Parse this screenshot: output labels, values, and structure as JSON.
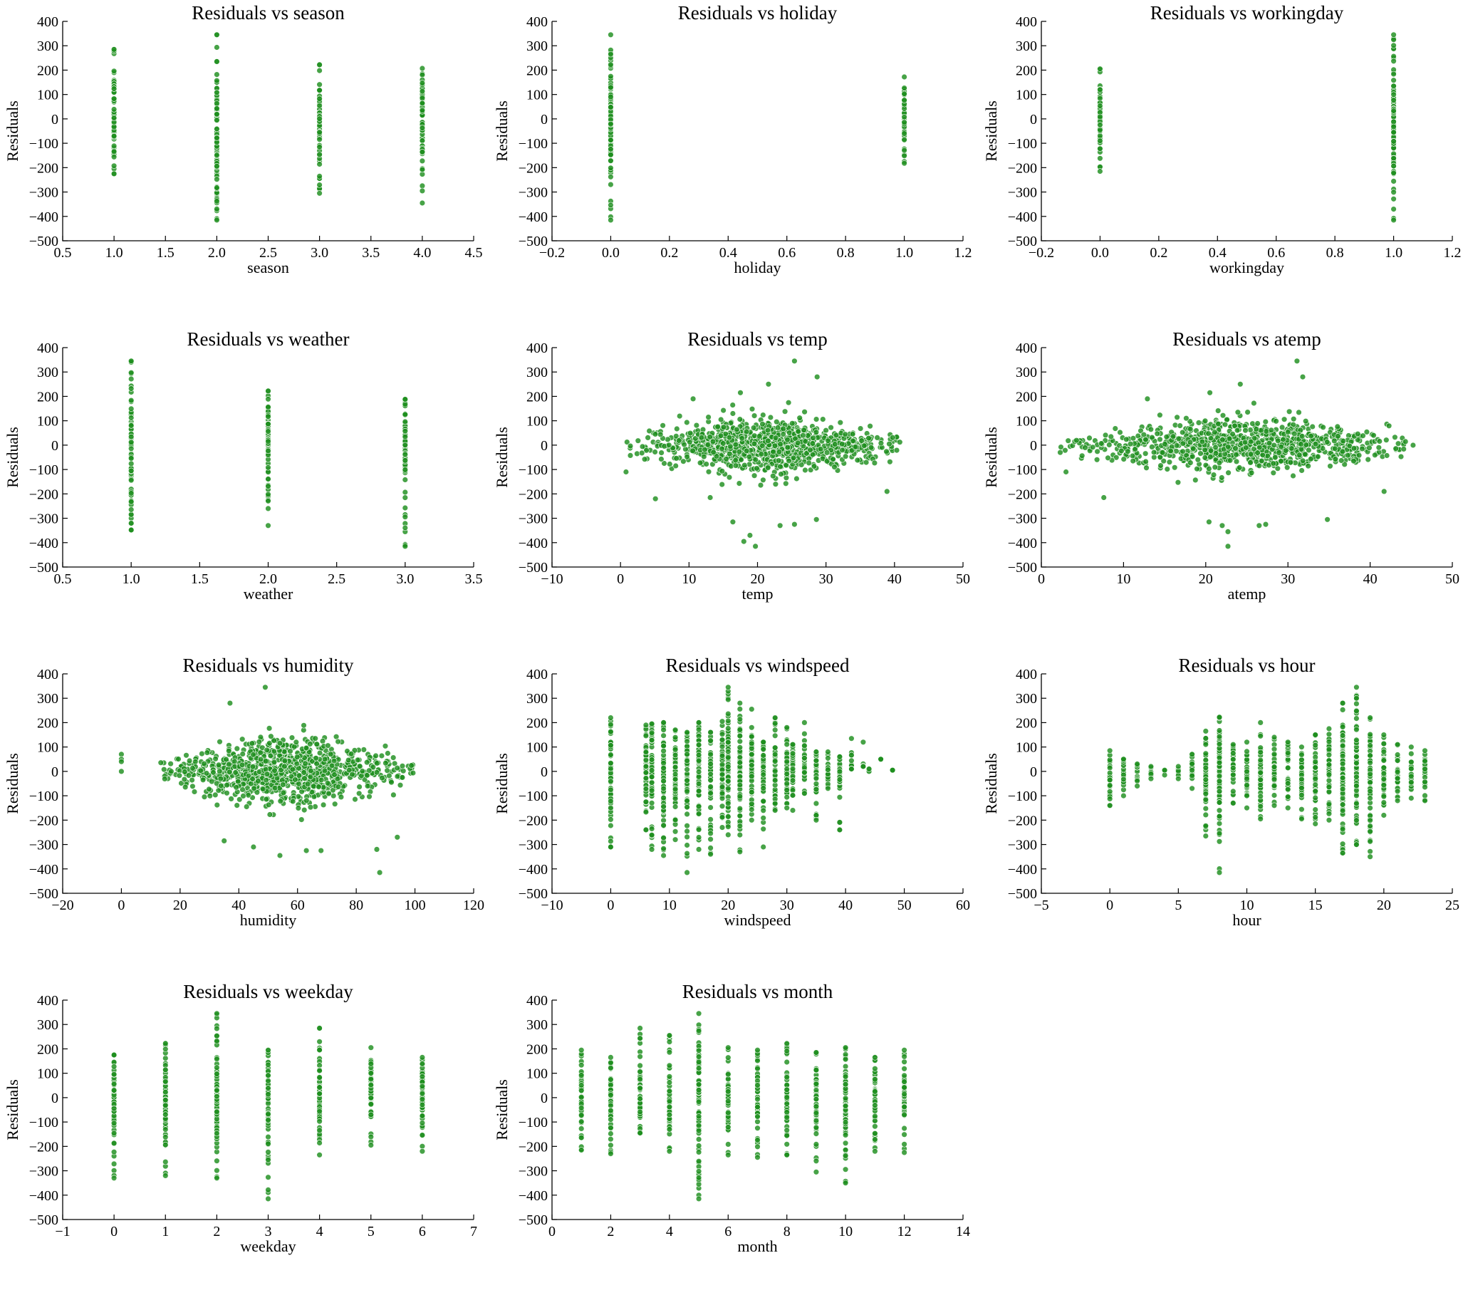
{
  "chart_data": [
    {
      "type": "scatter",
      "title": "Residuals vs season",
      "xlabel": "season",
      "ylabel": "Residuals",
      "xlim": [
        0.5,
        4.5
      ],
      "ylim": [
        -500,
        400
      ],
      "xticks": [
        "0.5",
        "1.0",
        "1.5",
        "2.0",
        "2.5",
        "3.0",
        "3.5",
        "4.0",
        "4.5"
      ],
      "yticks": [
        "400",
        "300",
        "200",
        "100",
        "0",
        "−100",
        "−200",
        "−300",
        "−400",
        "−500"
      ],
      "color": "#1f8f1f",
      "grid": false,
      "kind": "discrete",
      "groups": [
        {
          "x": 1,
          "min": -225,
          "max": 285
        },
        {
          "x": 2,
          "min": -415,
          "max": 345
        },
        {
          "x": 3,
          "min": -305,
          "max": 222
        },
        {
          "x": 4,
          "min": -345,
          "max": 207
        }
      ]
    },
    {
      "type": "scatter",
      "title": "Residuals vs holiday",
      "xlabel": "holiday",
      "ylabel": "Residuals",
      "xlim": [
        -0.2,
        1.2
      ],
      "ylim": [
        -500,
        400
      ],
      "xticks": [
        "−0.2",
        "0.0",
        "0.2",
        "0.4",
        "0.6",
        "0.8",
        "1.0",
        "1.2"
      ],
      "yticks": [
        "400",
        "300",
        "200",
        "100",
        "0",
        "−100",
        "−200",
        "−300",
        "−400",
        "−500"
      ],
      "color": "#1f8f1f",
      "grid": false,
      "kind": "discrete",
      "groups": [
        {
          "x": 0,
          "min": -415,
          "max": 345
        },
        {
          "x": 1,
          "min": -182,
          "max": 172
        }
      ]
    },
    {
      "type": "scatter",
      "title": "Residuals vs workingday",
      "xlabel": "workingday",
      "ylabel": "Residuals",
      "xlim": [
        -0.2,
        1.2
      ],
      "ylim": [
        -500,
        400
      ],
      "xticks": [
        "−0.2",
        "0.0",
        "0.2",
        "0.4",
        "0.6",
        "0.8",
        "1.0",
        "1.2"
      ],
      "yticks": [
        "400",
        "300",
        "200",
        "100",
        "0",
        "−100",
        "−200",
        "−300",
        "−400",
        "−500"
      ],
      "color": "#1f8f1f",
      "grid": false,
      "kind": "discrete",
      "groups": [
        {
          "x": 0,
          "min": -215,
          "max": 205
        },
        {
          "x": 1,
          "min": -415,
          "max": 345
        }
      ]
    },
    {
      "type": "scatter",
      "title": "Residuals vs weather",
      "xlabel": "weather",
      "ylabel": "Residuals",
      "xlim": [
        0.5,
        3.5
      ],
      "ylim": [
        -500,
        400
      ],
      "xticks": [
        "0.5",
        "1.0",
        "1.5",
        "2.0",
        "2.5",
        "3.0",
        "3.5"
      ],
      "yticks": [
        "400",
        "300",
        "200",
        "100",
        "0",
        "−100",
        "−200",
        "−300",
        "−400",
        "−500"
      ],
      "color": "#1f8f1f",
      "grid": false,
      "kind": "discrete",
      "groups": [
        {
          "x": 1,
          "min": -348,
          "max": 345
        },
        {
          "x": 2,
          "min": -330,
          "max": 222
        },
        {
          "x": 3,
          "min": -415,
          "max": 188
        }
      ]
    },
    {
      "type": "scatter",
      "title": "Residuals vs temp",
      "xlabel": "temp",
      "ylabel": "Residuals",
      "xlim": [
        -10,
        50
      ],
      "ylim": [
        -500,
        400
      ],
      "xticks": [
        "−10",
        "0",
        "10",
        "20",
        "30",
        "40",
        "50"
      ],
      "yticks": [
        "400",
        "300",
        "200",
        "100",
        "0",
        "−100",
        "−200",
        "−300",
        "−400",
        "−500"
      ],
      "color": "#1f8f1f",
      "grid": false,
      "kind": "cloud",
      "range": [
        0.8,
        41
      ],
      "center": 22,
      "spread": 55,
      "count": 900,
      "outliers": [
        [
          25.4,
          345
        ],
        [
          28.7,
          280
        ],
        [
          21.6,
          250
        ],
        [
          17.5,
          215
        ],
        [
          10.6,
          190
        ],
        [
          18.9,
          -370
        ],
        [
          18.0,
          -395
        ],
        [
          19.7,
          -415
        ],
        [
          23.3,
          -330
        ],
        [
          25.4,
          -325
        ],
        [
          28.6,
          -305
        ],
        [
          16.4,
          -315
        ],
        [
          13.1,
          -215
        ],
        [
          5.1,
          -220
        ],
        [
          0.8,
          -110
        ],
        [
          38.9,
          -190
        ]
      ]
    },
    {
      "type": "scatter",
      "title": "Residuals vs atemp",
      "xlabel": "atemp",
      "ylabel": "Residuals",
      "xlim": [
        0,
        50
      ],
      "ylim": [
        -500,
        400
      ],
      "xticks": [
        "0",
        "10",
        "20",
        "30",
        "40",
        "50"
      ],
      "yticks": [
        "400",
        "300",
        "200",
        "100",
        "0",
        "−100",
        "−200",
        "−300",
        "−400",
        "−500"
      ],
      "color": "#1f8f1f",
      "grid": false,
      "kind": "cloud",
      "range": [
        2.3,
        45.5
      ],
      "center": 25,
      "spread": 55,
      "count": 900,
      "outliers": [
        [
          31.1,
          345
        ],
        [
          31.8,
          280
        ],
        [
          24.2,
          250
        ],
        [
          20.5,
          215
        ],
        [
          12.9,
          190
        ],
        [
          22.7,
          -355
        ],
        [
          22.0,
          -330
        ],
        [
          22.7,
          -415
        ],
        [
          26.5,
          -330
        ],
        [
          27.3,
          -325
        ],
        [
          34.8,
          -305
        ],
        [
          20.4,
          -315
        ],
        [
          7.6,
          -215
        ],
        [
          2.3,
          -30
        ],
        [
          3.0,
          -110
        ],
        [
          41.7,
          -190
        ]
      ]
    },
    {
      "type": "scatter",
      "title": "Residuals vs humidity",
      "xlabel": "humidity",
      "ylabel": "Residuals",
      "xlim": [
        -20,
        120
      ],
      "ylim": [
        -500,
        400
      ],
      "xticks": [
        "−20",
        "0",
        "20",
        "40",
        "60",
        "80",
        "100",
        "120"
      ],
      "yticks": [
        "400",
        "300",
        "200",
        "100",
        "0",
        "−100",
        "−200",
        "−300",
        "−400",
        "−500"
      ],
      "color": "#1f8f1f",
      "grid": false,
      "kind": "cloud",
      "range": [
        13,
        100
      ],
      "center": 55,
      "spread": 60,
      "count": 1000,
      "outliers": [
        [
          0,
          70
        ],
        [
          0,
          50
        ],
        [
          0,
          40
        ],
        [
          0,
          0
        ],
        [
          49,
          345
        ],
        [
          37,
          280
        ],
        [
          88,
          -415
        ],
        [
          54,
          -345
        ],
        [
          63,
          -325
        ],
        [
          68,
          -325
        ],
        [
          87,
          -320
        ],
        [
          94,
          -270
        ],
        [
          45,
          -310
        ],
        [
          35,
          -285
        ]
      ]
    },
    {
      "type": "scatter",
      "title": "Residuals vs windspeed",
      "xlabel": "windspeed",
      "ylabel": "Residuals",
      "xlim": [
        -10,
        60
      ],
      "ylim": [
        -500,
        400
      ],
      "xticks": [
        "−10",
        "0",
        "10",
        "20",
        "30",
        "40",
        "50",
        "60"
      ],
      "yticks": [
        "400",
        "300",
        "200",
        "100",
        "0",
        "−100",
        "−200",
        "−300",
        "−400",
        "−500"
      ],
      "color": "#1f8f1f",
      "grid": false,
      "kind": "discrete",
      "groups": [
        {
          "x": 0,
          "min": -310,
          "max": 220
        },
        {
          "x": 6,
          "min": -240,
          "max": 190
        },
        {
          "x": 7,
          "min": -320,
          "max": 195
        },
        {
          "x": 9,
          "min": -345,
          "max": 200
        },
        {
          "x": 11,
          "min": -280,
          "max": 170
        },
        {
          "x": 13,
          "min": -415,
          "max": 160
        },
        {
          "x": 15,
          "min": -320,
          "max": 200
        },
        {
          "x": 17,
          "min": -340,
          "max": 160
        },
        {
          "x": 19,
          "min": -230,
          "max": 205
        },
        {
          "x": 20,
          "min": -260,
          "max": 345
        },
        {
          "x": 22,
          "min": -330,
          "max": 280
        },
        {
          "x": 24,
          "min": -200,
          "max": 255
        },
        {
          "x": 26,
          "min": -310,
          "max": 120
        },
        {
          "x": 28,
          "min": -160,
          "max": 220
        },
        {
          "x": 30,
          "min": -150,
          "max": 180
        },
        {
          "x": 31,
          "min": -160,
          "max": 110
        },
        {
          "x": 33,
          "min": -90,
          "max": 200
        },
        {
          "x": 35,
          "min": -200,
          "max": 80
        },
        {
          "x": 37,
          "min": -70,
          "max": 80
        },
        {
          "x": 39,
          "min": -240,
          "max": 60
        },
        {
          "x": 41,
          "min": 10,
          "max": 135
        },
        {
          "x": 43,
          "min": 20,
          "max": 120
        },
        {
          "x": 44,
          "min": 0,
          "max": 10
        },
        {
          "x": 46,
          "min": 50,
          "max": 50
        },
        {
          "x": 48,
          "min": 5,
          "max": 5
        }
      ]
    },
    {
      "type": "scatter",
      "title": "Residuals vs hour",
      "xlabel": "hour",
      "ylabel": "Residuals",
      "xlim": [
        -5,
        25
      ],
      "ylim": [
        -500,
        400
      ],
      "xticks": [
        "−5",
        "0",
        "5",
        "10",
        "15",
        "20",
        "25"
      ],
      "yticks": [
        "400",
        "300",
        "200",
        "100",
        "0",
        "−100",
        "−200",
        "−300",
        "−400",
        "−500"
      ],
      "color": "#1f8f1f",
      "grid": false,
      "kind": "discrete",
      "groups": [
        {
          "x": 0,
          "min": -140,
          "max": 85
        },
        {
          "x": 1,
          "min": -100,
          "max": 50
        },
        {
          "x": 2,
          "min": -60,
          "max": 30
        },
        {
          "x": 3,
          "min": -30,
          "max": 20
        },
        {
          "x": 4,
          "min": -15,
          "max": 5
        },
        {
          "x": 5,
          "min": -30,
          "max": 20
        },
        {
          "x": 6,
          "min": -70,
          "max": 70
        },
        {
          "x": 7,
          "min": -265,
          "max": 165
        },
        {
          "x": 8,
          "min": -415,
          "max": 222
        },
        {
          "x": 9,
          "min": -130,
          "max": 110
        },
        {
          "x": 10,
          "min": -150,
          "max": 120
        },
        {
          "x": 11,
          "min": -195,
          "max": 200
        },
        {
          "x": 12,
          "min": -140,
          "max": 140
        },
        {
          "x": 13,
          "min": -150,
          "max": 120
        },
        {
          "x": 14,
          "min": -195,
          "max": 100
        },
        {
          "x": 15,
          "min": -215,
          "max": 150
        },
        {
          "x": 16,
          "min": -200,
          "max": 175
        },
        {
          "x": 17,
          "min": -335,
          "max": 280
        },
        {
          "x": 18,
          "min": -300,
          "max": 345
        },
        {
          "x": 19,
          "min": -350,
          "max": 220
        },
        {
          "x": 20,
          "min": -180,
          "max": 150
        },
        {
          "x": 21,
          "min": -120,
          "max": 110
        },
        {
          "x": 22,
          "min": -110,
          "max": 100
        },
        {
          "x": 23,
          "min": -120,
          "max": 85
        }
      ]
    },
    {
      "type": "scatter",
      "title": "Residuals vs weekday",
      "xlabel": "weekday",
      "ylabel": "Residuals",
      "xlim": [
        -1,
        7
      ],
      "ylim": [
        -500,
        400
      ],
      "xticks": [
        "−1",
        "0",
        "1",
        "2",
        "3",
        "4",
        "5",
        "6",
        "7"
      ],
      "yticks": [
        "400",
        "300",
        "200",
        "100",
        "0",
        "−100",
        "−200",
        "−300",
        "−400",
        "−500"
      ],
      "color": "#1f8f1f",
      "grid": false,
      "kind": "discrete",
      "groups": [
        {
          "x": 0,
          "min": -330,
          "max": 175
        },
        {
          "x": 1,
          "min": -320,
          "max": 222
        },
        {
          "x": 2,
          "min": -330,
          "max": 345
        },
        {
          "x": 3,
          "min": -415,
          "max": 195
        },
        {
          "x": 4,
          "min": -235,
          "max": 285
        },
        {
          "x": 5,
          "min": -195,
          "max": 205
        },
        {
          "x": 6,
          "min": -220,
          "max": 165
        }
      ]
    },
    {
      "type": "scatter",
      "title": "Residuals vs month",
      "xlabel": "month",
      "ylabel": "Residuals",
      "xlim": [
        0,
        14
      ],
      "ylim": [
        -500,
        400
      ],
      "xticks": [
        "0",
        "2",
        "4",
        "6",
        "8",
        "10",
        "12",
        "14"
      ],
      "yticks": [
        "400",
        "300",
        "200",
        "100",
        "0",
        "−100",
        "−200",
        "−300",
        "−400",
        "−500"
      ],
      "color": "#1f8f1f",
      "grid": false,
      "kind": "discrete",
      "groups": [
        {
          "x": 1,
          "min": -215,
          "max": 195
        },
        {
          "x": 2,
          "min": -230,
          "max": 165
        },
        {
          "x": 3,
          "min": -145,
          "max": 285
        },
        {
          "x": 4,
          "min": -220,
          "max": 255
        },
        {
          "x": 5,
          "min": -415,
          "max": 345
        },
        {
          "x": 6,
          "min": -235,
          "max": 205
        },
        {
          "x": 7,
          "min": -245,
          "max": 195
        },
        {
          "x": 8,
          "min": -235,
          "max": 222
        },
        {
          "x": 9,
          "min": -305,
          "max": 185
        },
        {
          "x": 10,
          "min": -350,
          "max": 205
        },
        {
          "x": 11,
          "min": -220,
          "max": 165
        },
        {
          "x": 12,
          "min": -225,
          "max": 195
        }
      ]
    }
  ]
}
